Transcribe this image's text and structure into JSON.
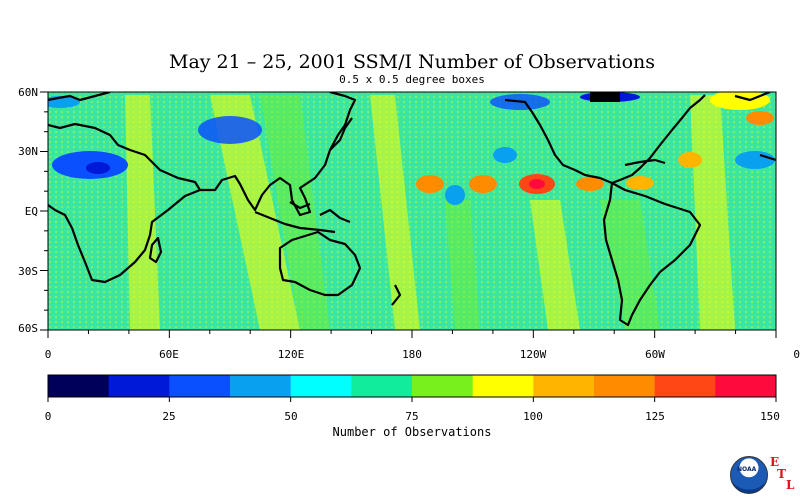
{
  "title": "May 21 – 25, 2001 SSM/I Number of Observations",
  "subtitle": "0.5 x 0.5 degree boxes",
  "lat_labels": [
    "60N",
    "30N",
    "EQ",
    "30S",
    "60S"
  ],
  "lon_labels": [
    "0",
    "60E",
    "120E",
    "180",
    "120W",
    "60W",
    "0"
  ],
  "colorbar": {
    "title": "Number of Observations",
    "ticks": [
      "0",
      "25",
      "50",
      "75",
      "100",
      "125",
      "150"
    ],
    "colors": [
      "#00005a",
      "#0018d8",
      "#0a50ff",
      "#0aa0f0",
      "#00ffff",
      "#10ec9c",
      "#78f01e",
      "#ffff00",
      "#ffb400",
      "#ff8c00",
      "#ff4614",
      "#ff0a3c"
    ],
    "min": 0,
    "max": 150
  },
  "logo": {
    "name": "NOAA",
    "etl_letters": [
      "E",
      "T",
      "L"
    ]
  },
  "colors": {
    "land_outline": "#000000",
    "ocean_base": "#3ce6a0",
    "background": "#ffffff"
  }
}
